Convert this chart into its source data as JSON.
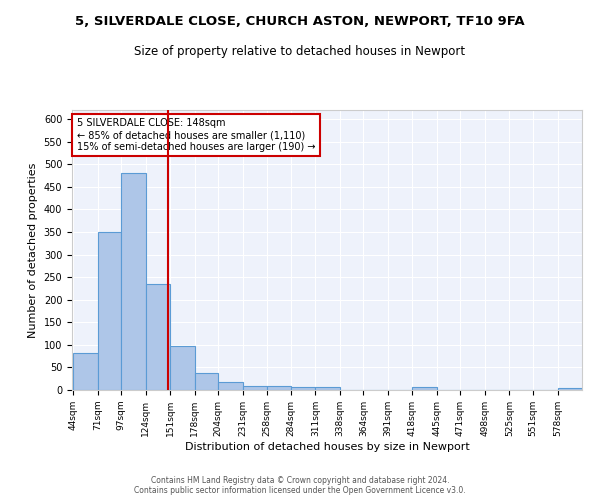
{
  "title1": "5, SILVERDALE CLOSE, CHURCH ASTON, NEWPORT, TF10 9FA",
  "title2": "Size of property relative to detached houses in Newport",
  "xlabel": "Distribution of detached houses by size in Newport",
  "ylabel": "Number of detached properties",
  "bar_edges": [
    44,
    71,
    97,
    124,
    151,
    178,
    204,
    231,
    258,
    284,
    311,
    338,
    364,
    391,
    418,
    445,
    471,
    498,
    525,
    551,
    578,
    605
  ],
  "bar_heights": [
    83,
    350,
    480,
    235,
    97,
    38,
    18,
    8,
    8,
    7,
    6,
    0,
    0,
    0,
    6,
    0,
    0,
    0,
    0,
    0,
    5
  ],
  "bar_color": "#aec6e8",
  "bar_edge_color": "#5b9bd5",
  "red_line_x": 148,
  "annotation_title": "5 SILVERDALE CLOSE: 148sqm",
  "annotation_line1": "← 85% of detached houses are smaller (1,110)",
  "annotation_line2": "15% of semi-detached houses are larger (190) →",
  "annotation_box_color": "#ffffff",
  "annotation_box_edge": "#cc0000",
  "red_line_color": "#cc0000",
  "ylim": [
    0,
    620
  ],
  "yticks": [
    0,
    50,
    100,
    150,
    200,
    250,
    300,
    350,
    400,
    450,
    500,
    550,
    600
  ],
  "background_color": "#eef2fb",
  "grid_color": "#ffffff",
  "title1_fontsize": 9.5,
  "title2_fontsize": 8.5,
  "xlabel_fontsize": 8,
  "ylabel_fontsize": 8,
  "footer1": "Contains HM Land Registry data © Crown copyright and database right 2024.",
  "footer2": "Contains public sector information licensed under the Open Government Licence v3.0."
}
